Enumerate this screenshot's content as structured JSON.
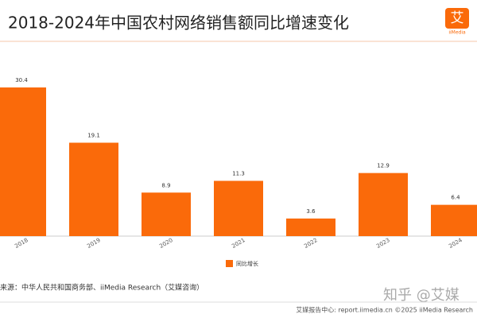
{
  "chart_data": {
    "type": "bar",
    "title": "2018-2024年中国农村网络销售额同比增速变化",
    "logo": "艾",
    "logo_sub": "iiMedia",
    "categories": [
      "2018",
      "2019",
      "2020",
      "2021",
      "2022",
      "2023",
      "2024"
    ],
    "series": [
      {
        "name": "同比增长",
        "color": "#fa6a0a",
        "values": [
          30.4,
          19.1,
          8.9,
          11.3,
          3.6,
          12.9,
          6.4
        ]
      }
    ],
    "source": "来源：中华人民共和国商务部、iiMedia Research（艾媒咨询）",
    "watermark": "知乎 @艾媒",
    "footer": "艾媒报告中心: report.iimedia.cn  ©2025 iiMedia Research"
  }
}
